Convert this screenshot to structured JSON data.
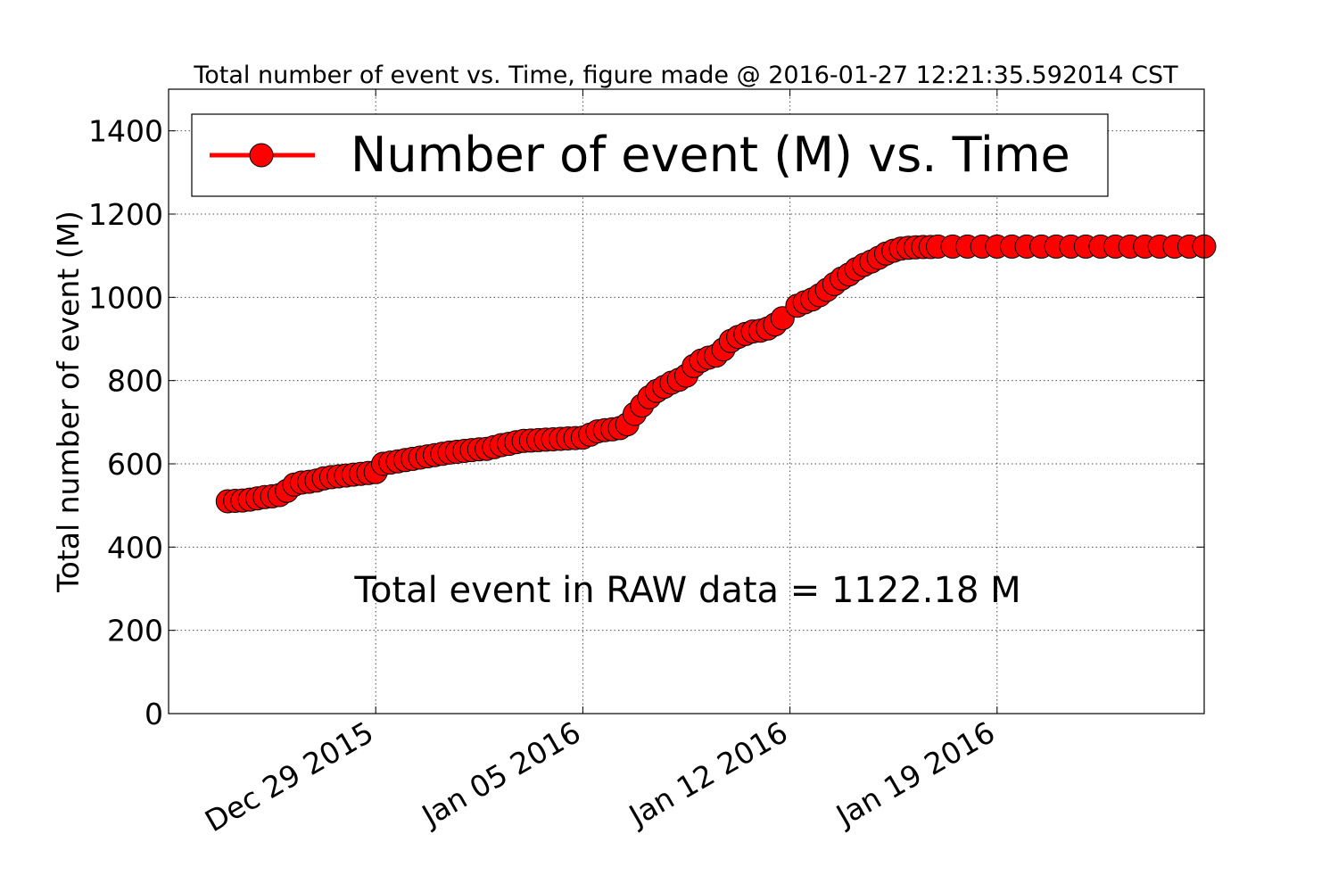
{
  "chart_data": {
    "type": "scatter",
    "title": "Total number of event vs. Time, figure made @ 2016-01-27 12:21:35.592014 CST",
    "xlabel": "",
    "ylabel": "Total number of event (M)",
    "xlim": [
      "2015-12-22",
      "2016-01-26"
    ],
    "ylim": [
      0,
      1500
    ],
    "yticks": [
      0,
      200,
      400,
      600,
      800,
      1000,
      1200,
      1400
    ],
    "xticks": [
      {
        "date": "2015-12-29",
        "label": "Dec 29 2015"
      },
      {
        "date": "2016-01-05",
        "label": "Jan 05 2016"
      },
      {
        "date": "2016-01-12",
        "label": "Jan 12 2016"
      },
      {
        "date": "2016-01-19",
        "label": "Jan 19 2016"
      }
    ],
    "grid": true,
    "legend_position": "top-left",
    "series": [
      {
        "name": "Number of event (M) vs. Time",
        "color": "#ff0000",
        "marker": "circle",
        "points": [
          [
            "2015-12-24T00:00",
            510
          ],
          [
            "2015-12-24T06:00",
            511
          ],
          [
            "2015-12-24T12:00",
            512
          ],
          [
            "2015-12-24T18:00",
            514
          ],
          [
            "2015-12-25T00:00",
            517
          ],
          [
            "2015-12-25T06:00",
            520
          ],
          [
            "2015-12-25T12:00",
            522
          ],
          [
            "2015-12-25T18:00",
            525
          ],
          [
            "2015-12-26T00:00",
            535
          ],
          [
            "2015-12-26T06:00",
            550
          ],
          [
            "2015-12-26T12:00",
            555
          ],
          [
            "2015-12-26T18:00",
            557
          ],
          [
            "2015-12-27T00:00",
            560
          ],
          [
            "2015-12-27T06:00",
            565
          ],
          [
            "2015-12-27T12:00",
            568
          ],
          [
            "2015-12-27T18:00",
            570
          ],
          [
            "2015-12-28T00:00",
            572
          ],
          [
            "2015-12-28T06:00",
            574
          ],
          [
            "2015-12-28T12:00",
            576
          ],
          [
            "2015-12-28T18:00",
            578
          ],
          [
            "2015-12-29T00:00",
            580
          ],
          [
            "2015-12-29T06:00",
            600
          ],
          [
            "2015-12-29T12:00",
            603
          ],
          [
            "2015-12-29T18:00",
            606
          ],
          [
            "2015-12-30T00:00",
            609
          ],
          [
            "2015-12-30T06:00",
            612
          ],
          [
            "2015-12-30T12:00",
            615
          ],
          [
            "2015-12-30T18:00",
            618
          ],
          [
            "2015-12-31T00:00",
            621
          ],
          [
            "2015-12-31T06:00",
            624
          ],
          [
            "2015-12-31T12:00",
            627
          ],
          [
            "2015-12-31T18:00",
            629
          ],
          [
            "2016-01-01T00:00",
            631
          ],
          [
            "2016-01-01T06:00",
            633
          ],
          [
            "2016-01-01T12:00",
            635
          ],
          [
            "2016-01-01T18:00",
            636
          ],
          [
            "2016-01-02T00:00",
            640
          ],
          [
            "2016-01-02T06:00",
            645
          ],
          [
            "2016-01-02T12:00",
            648
          ],
          [
            "2016-01-02T18:00",
            652
          ],
          [
            "2016-01-03T00:00",
            655
          ],
          [
            "2016-01-03T06:00",
            656
          ],
          [
            "2016-01-03T12:00",
            657
          ],
          [
            "2016-01-03T18:00",
            658
          ],
          [
            "2016-01-04T00:00",
            659
          ],
          [
            "2016-01-04T06:00",
            660
          ],
          [
            "2016-01-04T12:00",
            661
          ],
          [
            "2016-01-04T18:00",
            662
          ],
          [
            "2016-01-05T00:00",
            663
          ],
          [
            "2016-01-05T06:00",
            670
          ],
          [
            "2016-01-05T12:00",
            678
          ],
          [
            "2016-01-05T18:00",
            681
          ],
          [
            "2016-01-06T00:00",
            683
          ],
          [
            "2016-01-06T06:00",
            686
          ],
          [
            "2016-01-06T12:00",
            695
          ],
          [
            "2016-01-06T18:00",
            720
          ],
          [
            "2016-01-07T00:00",
            740
          ],
          [
            "2016-01-07T06:00",
            760
          ],
          [
            "2016-01-07T12:00",
            775
          ],
          [
            "2016-01-07T18:00",
            785
          ],
          [
            "2016-01-08T00:00",
            795
          ],
          [
            "2016-01-08T06:00",
            802
          ],
          [
            "2016-01-08T12:00",
            812
          ],
          [
            "2016-01-08T18:00",
            835
          ],
          [
            "2016-01-09T00:00",
            848
          ],
          [
            "2016-01-09T06:00",
            855
          ],
          [
            "2016-01-09T12:00",
            860
          ],
          [
            "2016-01-09T18:00",
            875
          ],
          [
            "2016-01-10T00:00",
            895
          ],
          [
            "2016-01-10T06:00",
            905
          ],
          [
            "2016-01-10T12:00",
            912
          ],
          [
            "2016-01-10T18:00",
            918
          ],
          [
            "2016-01-11T00:00",
            920
          ],
          [
            "2016-01-11T06:00",
            925
          ],
          [
            "2016-01-11T12:00",
            935
          ],
          [
            "2016-01-11T18:00",
            950
          ],
          [
            "2016-01-12T06:00",
            980
          ],
          [
            "2016-01-12T12:00",
            988
          ],
          [
            "2016-01-12T18:00",
            995
          ],
          [
            "2016-01-13T00:00",
            1005
          ],
          [
            "2016-01-13T06:00",
            1018
          ],
          [
            "2016-01-13T12:00",
            1032
          ],
          [
            "2016-01-13T18:00",
            1045
          ],
          [
            "2016-01-14T00:00",
            1055
          ],
          [
            "2016-01-14T06:00",
            1068
          ],
          [
            "2016-01-14T12:00",
            1078
          ],
          [
            "2016-01-14T18:00",
            1086
          ],
          [
            "2016-01-15T00:00",
            1095
          ],
          [
            "2016-01-15T06:00",
            1105
          ],
          [
            "2016-01-15T12:00",
            1112
          ],
          [
            "2016-01-15T18:00",
            1117
          ],
          [
            "2016-01-16T00:00",
            1119
          ],
          [
            "2016-01-16T06:00",
            1120
          ],
          [
            "2016-01-16T12:00",
            1121
          ],
          [
            "2016-01-16T18:00",
            1121
          ],
          [
            "2016-01-17T00:00",
            1122
          ],
          [
            "2016-01-17T12:00",
            1122
          ],
          [
            "2016-01-18T00:00",
            1122
          ],
          [
            "2016-01-18T12:00",
            1122
          ],
          [
            "2016-01-19T00:00",
            1122
          ],
          [
            "2016-01-19T12:00",
            1122
          ],
          [
            "2016-01-20T00:00",
            1122
          ],
          [
            "2016-01-20T12:00",
            1122
          ],
          [
            "2016-01-21T00:00",
            1122
          ],
          [
            "2016-01-21T12:00",
            1122
          ],
          [
            "2016-01-22T00:00",
            1122
          ],
          [
            "2016-01-22T12:00",
            1122
          ],
          [
            "2016-01-23T00:00",
            1122
          ],
          [
            "2016-01-23T12:00",
            1122
          ],
          [
            "2016-01-24T00:00",
            1122
          ],
          [
            "2016-01-24T12:00",
            1122
          ],
          [
            "2016-01-25T00:00",
            1122
          ],
          [
            "2016-01-25T12:00",
            1122
          ],
          [
            "2016-01-26T00:00",
            1122.18
          ]
        ]
      }
    ],
    "annotations": [
      "Total event in RAW data = 1122.18 M"
    ]
  }
}
